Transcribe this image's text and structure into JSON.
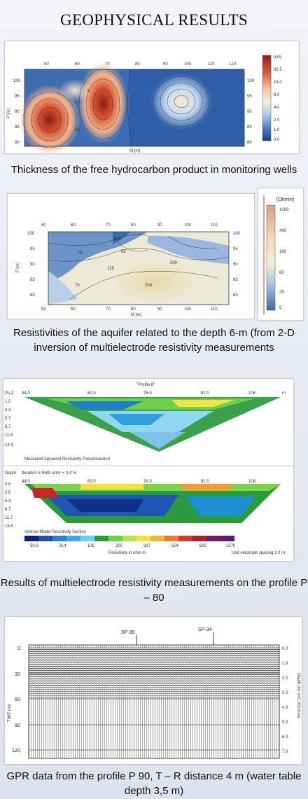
{
  "page": {
    "title": "GEOPHYSICAL RESULTS"
  },
  "panel1": {
    "caption": "Thickness of the free hydrocarbon product in monitoring wells",
    "x_ticks": [
      "50",
      "60",
      "70",
      "80",
      "90",
      "100",
      "110",
      "120"
    ],
    "y_ticks": [
      "100",
      "95",
      "90",
      "85",
      "80"
    ],
    "y_label": "P [m]",
    "x_label": "M [m]",
    "colorbar_unit": "[cm]",
    "colorbar_ticks": [
      "32.5",
      "16.0",
      "8.0",
      "4.0",
      "2.0",
      "1.0",
      "0.0"
    ],
    "contour_labels": [
      "24",
      "12",
      "16",
      "8"
    ]
  },
  "panel2": {
    "caption": "Resistivities of  the aquifer related to the depth 6-m (from 2-D inversion of multielectrode resistivity measurements",
    "x_ticks": [
      "50",
      "60",
      "70",
      "80",
      "90",
      "100",
      "110"
    ],
    "y_ticks": [
      "100",
      "95",
      "90",
      "85",
      "80"
    ],
    "y_label": "P [m]",
    "x_label": "M [m]",
    "colorbar_unit": "[Ohmm]",
    "colorbar_ticks": [
      "1000",
      "400",
      "160",
      "60",
      "25",
      "5"
    ],
    "contour_labels": [
      "125",
      "75",
      "50",
      "200",
      "125",
      "75",
      "200"
    ]
  },
  "panel3": {
    "caption": "Results of multielectrode resistivity measurements on the profile P – 80",
    "profile_title": "\"Profile 8\"",
    "top_axis": [
      "44.0",
      "60.0",
      "76.0",
      "92.0",
      "108"
    ],
    "top_axis_unit": "m",
    "top_depth_label": "Ps.Z",
    "top_depths": [
      "1.0",
      "3.4",
      "5.7",
      "8.7",
      "11.8",
      "14.9"
    ],
    "pseudo_label": "Measured Apparent Resistivity Pseudosection",
    "iteration_label": "Iteration 5 RMS error = 3.4 %",
    "bottom_depth_label": "Depth",
    "bottom_depths": [
      "0.5",
      "2.8",
      "6.3",
      "8.7",
      "11.7",
      "15.5"
    ],
    "model_label": "Inverse Model Resistivity Section",
    "legend_values": [
      "50.0",
      "79.4",
      "126",
      "200",
      "317",
      "504",
      "800",
      "1270"
    ],
    "legend_unit": "Resistivity in ohm.m",
    "spacing_label": "Unit electrode spacing 2.0 m."
  },
  "panel4": {
    "caption": "GPR data from the profile P 90, T – R distance 4 m (water table depth 3,5 m)",
    "markers": [
      "SP-39",
      "SP-34"
    ],
    "left_ticks": [
      "0",
      "30",
      "60",
      "90",
      "120"
    ],
    "left_label": "TIME (ns)",
    "right_ticks": [
      "0.0",
      "1.0",
      "2.0",
      "3.0",
      "4.0",
      "5.0",
      "6.0",
      "7.0"
    ],
    "right_label": "Depth (m) v=0.100 m/ns"
  },
  "colors": {
    "background": "#e7ebf3",
    "panel": "#ffffff",
    "text": "#111111",
    "accent_line": "#c0392b"
  }
}
